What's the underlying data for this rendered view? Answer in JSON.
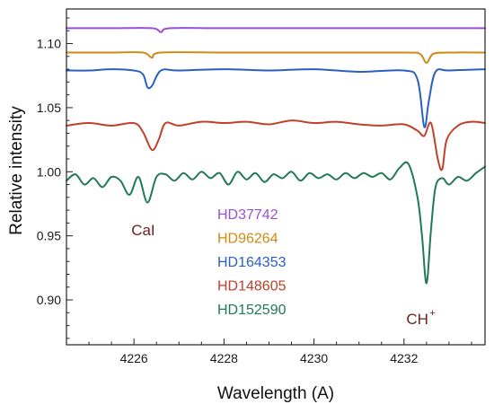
{
  "chart_data": {
    "type": "line",
    "xlabel": "Wavelength (A)",
    "ylabel": "Relative intensity",
    "xlim": [
      4224.5,
      4233.8
    ],
    "ylim": [
      0.865,
      1.127
    ],
    "xticks": [
      4226,
      4228,
      4230,
      4232
    ],
    "yticks": [
      0.9,
      0.95,
      1.0,
      1.05,
      1.1
    ],
    "ytick_labels": [
      "0.90",
      "0.95",
      "1.00",
      "1.05",
      "1.10"
    ],
    "grid": false,
    "legend_position": "center",
    "annotations": [
      {
        "text": "CaI",
        "x": 4226.3
      },
      {
        "text": "CH",
        "sup": "+",
        "x": 4232.45
      }
    ],
    "series": [
      {
        "name": "HD37742",
        "color": "#9b4fd6",
        "x": [
          4224.5,
          4225.5,
          4226.4,
          4226.6,
          4226.8,
          4228.0,
          4230.0,
          4232.0,
          4233.0,
          4233.8
        ],
        "y": [
          1.112,
          1.112,
          1.112,
          1.109,
          1.112,
          1.112,
          1.112,
          1.112,
          1.112,
          1.112
        ]
      },
      {
        "name": "HD96264",
        "color": "#d08a10",
        "x": [
          4224.5,
          4225.5,
          4226.2,
          4226.4,
          4226.6,
          4228.0,
          4230.0,
          4232.0,
          4232.35,
          4232.5,
          4232.65,
          4233.0,
          4233.8
        ],
        "y": [
          1.093,
          1.093,
          1.093,
          1.089,
          1.093,
          1.093,
          1.093,
          1.093,
          1.092,
          1.085,
          1.092,
          1.093,
          1.093
        ]
      },
      {
        "name": "HD164353",
        "color": "#2a5fc4",
        "x": [
          4224.5,
          4225.0,
          4225.5,
          4226.0,
          4226.2,
          4226.3,
          4226.4,
          4226.6,
          4227.0,
          4228.0,
          4229.0,
          4230.0,
          4231.0,
          4232.0,
          4232.3,
          4232.45,
          4232.55,
          4232.7,
          4233.0,
          4233.8
        ],
        "y": [
          1.079,
          1.079,
          1.08,
          1.079,
          1.076,
          1.066,
          1.067,
          1.079,
          1.079,
          1.08,
          1.079,
          1.08,
          1.078,
          1.079,
          1.072,
          1.035,
          1.055,
          1.078,
          1.079,
          1.08
        ]
      },
      {
        "name": "HD148605",
        "color": "#c0402a",
        "x": [
          4224.5,
          4225.0,
          4225.5,
          4226.0,
          4226.2,
          4226.4,
          4226.55,
          4226.7,
          4227.0,
          4227.5,
          4228.0,
          4228.5,
          4229.0,
          4229.5,
          4230.0,
          4230.5,
          4231.0,
          4231.5,
          4232.0,
          4232.3,
          4232.45,
          4232.6,
          4232.75,
          4232.85,
          4232.95,
          4233.2,
          4233.5,
          4233.8
        ],
        "y": [
          1.036,
          1.038,
          1.036,
          1.038,
          1.031,
          1.017,
          1.025,
          1.038,
          1.036,
          1.039,
          1.038,
          1.039,
          1.037,
          1.04,
          1.038,
          1.039,
          1.037,
          1.036,
          1.037,
          1.032,
          1.028,
          1.038,
          1.01,
          1.002,
          1.025,
          1.036,
          1.039,
          1.038
        ]
      },
      {
        "name": "HD152590",
        "color": "#1f7a55",
        "x": [
          4224.5,
          4224.7,
          4224.9,
          4225.1,
          4225.3,
          4225.5,
          4225.7,
          4225.9,
          4226.1,
          4226.3,
          4226.5,
          4226.7,
          4226.9,
          4227.1,
          4227.3,
          4227.5,
          4227.7,
          4227.9,
          4228.1,
          4228.3,
          4228.5,
          4228.7,
          4228.9,
          4229.1,
          4229.3,
          4229.5,
          4229.7,
          4229.9,
          4230.1,
          4230.3,
          4230.5,
          4230.7,
          4230.9,
          4231.1,
          4231.3,
          4231.5,
          4231.7,
          4231.9,
          4232.1,
          4232.3,
          4232.4,
          4232.5,
          4232.6,
          4232.7,
          4232.85,
          4233.0,
          4233.2,
          4233.4,
          4233.6,
          4233.8
        ],
        "y": [
          0.993,
          0.998,
          0.99,
          0.995,
          0.988,
          0.996,
          0.993,
          0.982,
          0.996,
          0.976,
          0.996,
          0.998,
          0.993,
          0.999,
          0.994,
          1.0,
          0.995,
          0.999,
          0.99,
          1.0,
          0.994,
          0.999,
          0.992,
          0.998,
          0.995,
          1.0,
          0.993,
          0.999,
          0.995,
          0.998,
          0.994,
          0.999,
          0.995,
          0.999,
          0.996,
          0.999,
          0.994,
          1.003,
          1.006,
          0.98,
          0.95,
          0.913,
          0.955,
          0.988,
          0.995,
          0.99,
          0.996,
          0.993,
          0.999,
          1.004
        ]
      }
    ]
  }
}
